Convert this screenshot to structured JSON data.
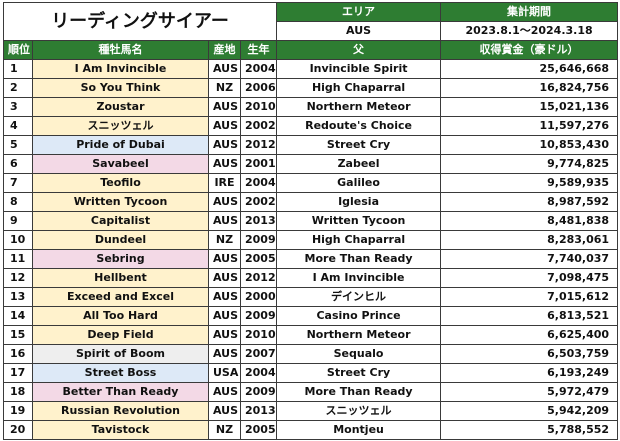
{
  "title": "リーディングサイアー",
  "header": {
    "area_label": "エリア",
    "area_value": "AUS",
    "period_label": "集計期間",
    "period_value": "2023.8.1～2024.3.18"
  },
  "columns": [
    "順位",
    "種牡馬名",
    "産地",
    "生年",
    "父",
    "収得賞金（豪ドル）"
  ],
  "colors": {
    "header_green": "#2e7d32",
    "orange": "#fff2cc",
    "blue": "#dde9f7",
    "pink": "#f3d9e6",
    "gray": "#eeeeee"
  },
  "rows": [
    {
      "rank": "1",
      "name": "I Am Invincible",
      "origin": "AUS",
      "year": "2004",
      "sire": "Invincible Spirit",
      "earnings": "25,646,668",
      "color": "#fff2cc"
    },
    {
      "rank": "2",
      "name": "So You Think",
      "origin": "NZ",
      "year": "2006",
      "sire": "High Chaparral",
      "earnings": "16,824,756",
      "color": "#fff2cc"
    },
    {
      "rank": "3",
      "name": "Zoustar",
      "origin": "AUS",
      "year": "2010",
      "sire": "Northern Meteor",
      "earnings": "15,021,136",
      "color": "#fff2cc"
    },
    {
      "rank": "4",
      "name": "スニッツェル",
      "origin": "AUS",
      "year": "2002",
      "sire": "Redoute's Choice",
      "earnings": "11,597,276",
      "color": "#fff2cc"
    },
    {
      "rank": "5",
      "name": "Pride of Dubai",
      "origin": "AUS",
      "year": "2012",
      "sire": "Street Cry",
      "earnings": "10,853,430",
      "color": "#dde9f7"
    },
    {
      "rank": "6",
      "name": "Savabeel",
      "origin": "AUS",
      "year": "2001",
      "sire": "Zabeel",
      "earnings": "9,774,825",
      "color": "#f3d9e6"
    },
    {
      "rank": "7",
      "name": "Teofilo",
      "origin": "IRE",
      "year": "2004",
      "sire": "Galileo",
      "earnings": "9,589,935",
      "color": "#fff2cc"
    },
    {
      "rank": "8",
      "name": "Written Tycoon",
      "origin": "AUS",
      "year": "2002",
      "sire": "Iglesia",
      "earnings": "8,987,592",
      "color": "#fff2cc"
    },
    {
      "rank": "9",
      "name": "Capitalist",
      "origin": "AUS",
      "year": "2013",
      "sire": "Written Tycoon",
      "earnings": "8,481,838",
      "color": "#fff2cc"
    },
    {
      "rank": "10",
      "name": "Dundeel",
      "origin": "NZ",
      "year": "2009",
      "sire": "High Chaparral",
      "earnings": "8,283,061",
      "color": "#fff2cc"
    },
    {
      "rank": "11",
      "name": "Sebring",
      "origin": "AUS",
      "year": "2005",
      "sire": "More Than Ready",
      "earnings": "7,740,037",
      "color": "#f3d9e6"
    },
    {
      "rank": "12",
      "name": "Hellbent",
      "origin": "AUS",
      "year": "2012",
      "sire": "I Am Invincible",
      "earnings": "7,098,475",
      "color": "#fff2cc"
    },
    {
      "rank": "13",
      "name": "Exceed and Excel",
      "origin": "AUS",
      "year": "2000",
      "sire": "デインヒル",
      "earnings": "7,015,612",
      "color": "#fff2cc"
    },
    {
      "rank": "14",
      "name": "All Too Hard",
      "origin": "AUS",
      "year": "2009",
      "sire": "Casino Prince",
      "earnings": "6,813,521",
      "color": "#fff2cc"
    },
    {
      "rank": "15",
      "name": "Deep Field",
      "origin": "AUS",
      "year": "2010",
      "sire": "Northern Meteor",
      "earnings": "6,625,400",
      "color": "#fff2cc"
    },
    {
      "rank": "16",
      "name": "Spirit of Boom",
      "origin": "AUS",
      "year": "2007",
      "sire": "Sequalo",
      "earnings": "6,503,759",
      "color": "#eeeeee"
    },
    {
      "rank": "17",
      "name": "Street Boss",
      "origin": "USA",
      "year": "2004",
      "sire": "Street Cry",
      "earnings": "6,193,249",
      "color": "#dde9f7"
    },
    {
      "rank": "18",
      "name": "Better Than Ready",
      "origin": "AUS",
      "year": "2009",
      "sire": "More Than Ready",
      "earnings": "5,972,479",
      "color": "#f3d9e6"
    },
    {
      "rank": "19",
      "name": "Russian Revolution",
      "origin": "AUS",
      "year": "2013",
      "sire": "スニッツェル",
      "earnings": "5,942,209",
      "color": "#fff2cc"
    },
    {
      "rank": "20",
      "name": "Tavistock",
      "origin": "NZ",
      "year": "2005",
      "sire": "Montjeu",
      "earnings": "5,788,552",
      "color": "#fff2cc"
    }
  ]
}
